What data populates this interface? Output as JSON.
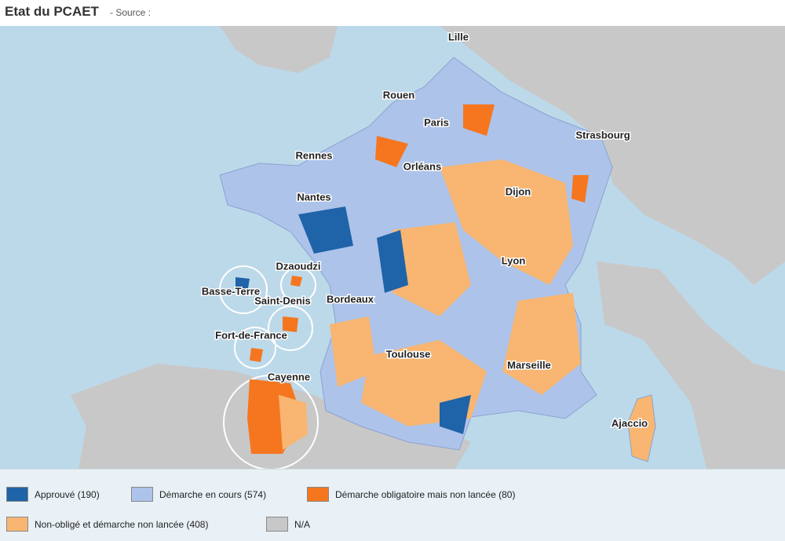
{
  "header": {
    "title": "Etat du PCAET",
    "subtitle": "- Source :"
  },
  "map": {
    "cities": [
      "Lille",
      "Rouen",
      "Paris",
      "Strasbourg",
      "Rennes",
      "Orléans",
      "Dijon",
      "Nantes",
      "Dzaoudzi",
      "Lyon",
      "Basse-Terre",
      "Saint-Denis",
      "Bordeaux",
      "Fort-de-France",
      "Toulouse",
      "Marseille",
      "Cayenne",
      "Ajaccio"
    ]
  },
  "legend": {
    "items": [
      {
        "label": "Approuvé (190)",
        "color": "#1f63a8"
      },
      {
        "label": "Démarche en cours (574)",
        "color": "#adc3ea"
      },
      {
        "label": "Démarche obligatoire mais non lancée (80)",
        "color": "#f5761f"
      },
      {
        "label": "Non-obligé et démarche non lancée (408)",
        "color": "#f8b672"
      },
      {
        "label": "N/A",
        "color": "#c8c8c8"
      }
    ]
  }
}
